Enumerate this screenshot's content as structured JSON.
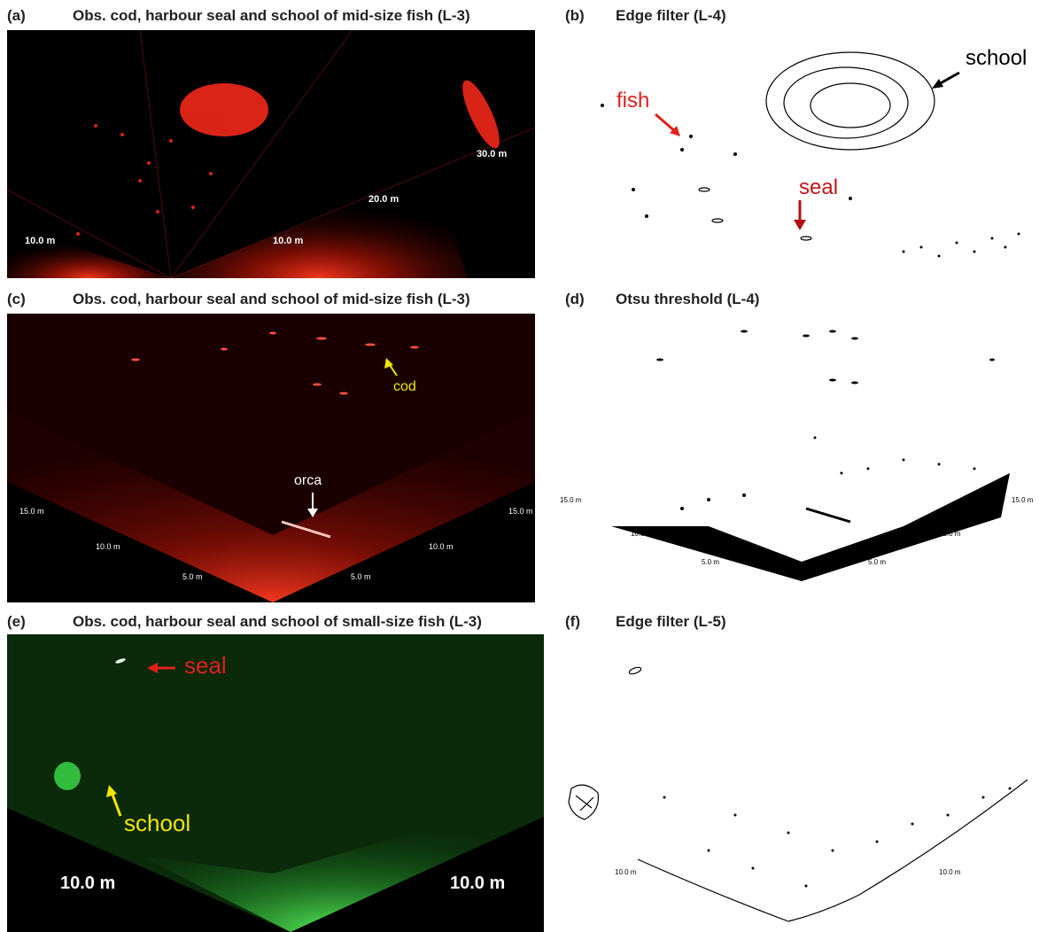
{
  "panels": [
    {
      "letter": "(a)",
      "title": "Obs. cod, harbour seal and school of mid-size fish (L-3)",
      "scale_labels": [
        "10.0 m",
        "10.0 m",
        "20.0 m",
        "30.0 m"
      ]
    },
    {
      "letter": "(b)",
      "title": "Edge filter (L-4)",
      "annotations": [
        "fish",
        "seal",
        "school"
      ]
    },
    {
      "letter": "(c)",
      "title": "Obs. cod, harbour seal and school of mid-size fish (L-3)",
      "scale_labels": [
        "15.0 m",
        "15.0 m",
        "10.0 m",
        "10.0 m",
        "5.0 m",
        "5.0 m"
      ],
      "annotations": [
        "cod",
        "orca"
      ]
    },
    {
      "letter": "(d)",
      "title": "Otsu threshold (L-4)",
      "scale_labels": [
        "15.0 m",
        "15.0 m",
        "10.0 m",
        "10.0 m",
        "5.0 m",
        "5.0 m"
      ]
    },
    {
      "letter": "(e)",
      "title": "Obs. cod, harbour seal and school of small-size fish (L-3)",
      "scale_labels": [
        "10.0 m",
        "10.0 m"
      ],
      "annotations": [
        "seal",
        "school"
      ]
    },
    {
      "letter": "(f)",
      "title": "Edge filter (L-5)",
      "scale_labels": [
        "10.0 m",
        "10.0 m"
      ]
    }
  ],
  "colors": {
    "sonar_red": "#ff2a1a",
    "sonar_green": "#3ce04a",
    "annot_red": "#e0201a",
    "annot_yellow": "#f2e600",
    "annot_white": "#ffffff",
    "annot_black": "#000000"
  }
}
